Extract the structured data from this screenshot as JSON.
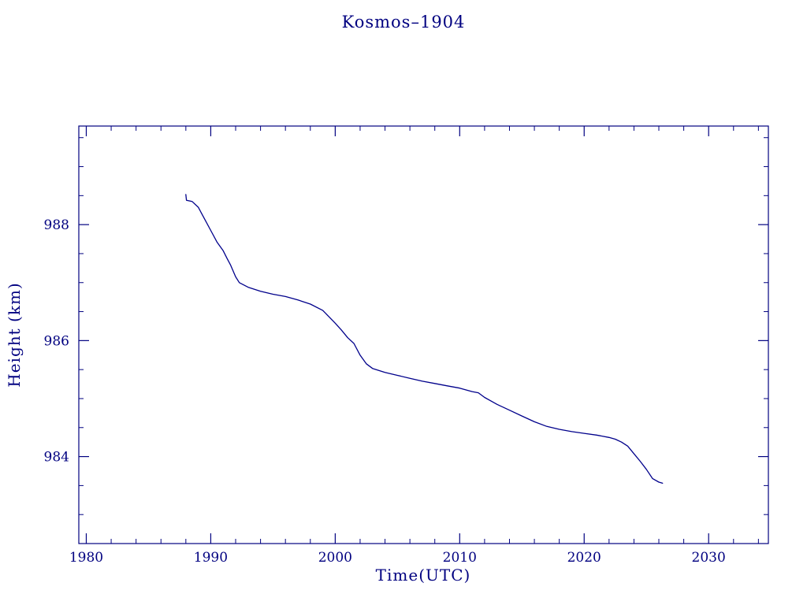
{
  "page": {
    "background": "#ffffff"
  },
  "chart_data": {
    "type": "line",
    "title": "Kosmos–1904",
    "xlabel": "Time(UTC)",
    "ylabel": "Height (km)",
    "xlim": [
      1979.4,
      2034.8
    ],
    "ylim": [
      982.5,
      989.7
    ],
    "x_ticks": [
      1980,
      1990,
      2000,
      2010,
      2020,
      2030
    ],
    "y_ticks": [
      984,
      986,
      988
    ],
    "x_minor_step": 2,
    "y_minor_step": 0.5,
    "grid": false,
    "legend": "none",
    "line_color": "#00008b",
    "axis_color": "#000080",
    "text_color": "#000080",
    "series": [
      {
        "name": "height-km",
        "points": [
          [
            1988.0,
            988.52
          ],
          [
            1988.05,
            988.42
          ],
          [
            1988.5,
            988.4
          ],
          [
            1989.0,
            988.3
          ],
          [
            1989.5,
            988.1
          ],
          [
            1990.0,
            987.9
          ],
          [
            1990.5,
            987.7
          ],
          [
            1991.0,
            987.55
          ],
          [
            1991.3,
            987.42
          ],
          [
            1991.6,
            987.3
          ],
          [
            1992.0,
            987.1
          ],
          [
            1992.3,
            987.0
          ],
          [
            1993.0,
            986.92
          ],
          [
            1994.0,
            986.85
          ],
          [
            1995.0,
            986.8
          ],
          [
            1996.0,
            986.76
          ],
          [
            1997.0,
            986.7
          ],
          [
            1998.0,
            986.63
          ],
          [
            1999.0,
            986.52
          ],
          [
            2000.0,
            986.3
          ],
          [
            2000.5,
            986.18
          ],
          [
            2001.0,
            986.05
          ],
          [
            2001.5,
            985.95
          ],
          [
            2002.0,
            985.75
          ],
          [
            2002.5,
            985.6
          ],
          [
            2003.0,
            985.52
          ],
          [
            2004.0,
            985.45
          ],
          [
            2005.0,
            985.4
          ],
          [
            2006.0,
            985.35
          ],
          [
            2007.0,
            985.3
          ],
          [
            2008.0,
            985.26
          ],
          [
            2009.0,
            985.22
          ],
          [
            2010.0,
            985.18
          ],
          [
            2011.0,
            985.12
          ],
          [
            2011.5,
            985.1
          ],
          [
            2012.0,
            985.02
          ],
          [
            2013.0,
            984.9
          ],
          [
            2014.0,
            984.8
          ],
          [
            2015.0,
            984.7
          ],
          [
            2016.0,
            984.6
          ],
          [
            2017.0,
            984.52
          ],
          [
            2018.0,
            984.47
          ],
          [
            2019.0,
            984.43
          ],
          [
            2020.0,
            984.4
          ],
          [
            2021.0,
            984.37
          ],
          [
            2022.0,
            984.33
          ],
          [
            2022.5,
            984.3
          ],
          [
            2023.0,
            984.25
          ],
          [
            2023.5,
            984.18
          ],
          [
            2024.0,
            984.05
          ],
          [
            2024.5,
            983.92
          ],
          [
            2025.0,
            983.78
          ],
          [
            2025.5,
            983.62
          ],
          [
            2026.0,
            983.56
          ],
          [
            2026.3,
            983.54
          ]
        ]
      }
    ]
  }
}
